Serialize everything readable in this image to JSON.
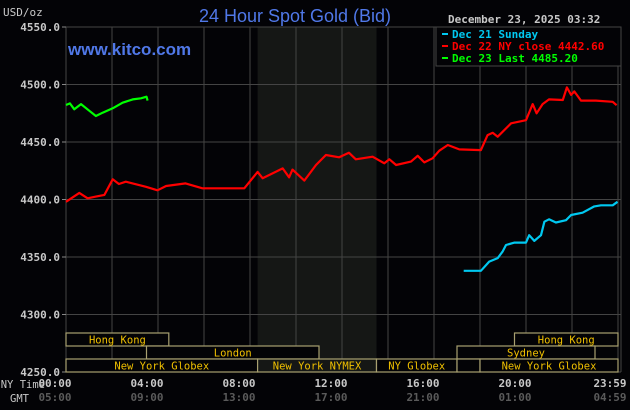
{
  "chart_data": {
    "type": "line",
    "title": "24 Hour Spot Gold (Bid)",
    "ylabel": "USD/oz",
    "watermark": "www.kitco.com",
    "timestamp": "December 23, 2025 03:32",
    "ylim": [
      4250,
      4550
    ],
    "yticks": [
      "4550.0",
      "4500.0",
      "4450.0",
      "4400.0",
      "4350.0",
      "4300.0",
      "4250.0"
    ],
    "ytick_values": [
      4550,
      4500,
      4450,
      4400,
      4350,
      4300,
      4250
    ],
    "xlim_hours": [
      0,
      24
    ],
    "grid": true,
    "x_row_labels": {
      "ny": "NY Time",
      "gmt": "GMT"
    },
    "xticks": [
      {
        "hour": 0,
        "ny": "00:00",
        "gmt": "05:00"
      },
      {
        "hour": 4,
        "ny": "04:00",
        "gmt": "09:00"
      },
      {
        "hour": 8,
        "ny": "08:00",
        "gmt": "13:00"
      },
      {
        "hour": 12,
        "ny": "12:00",
        "gmt": "17:00"
      },
      {
        "hour": 16,
        "ny": "16:00",
        "gmt": "21:00"
      },
      {
        "hour": 20,
        "ny": "20:00",
        "gmt": "01:00"
      },
      {
        "hour": 23.98,
        "ny": "23:59",
        "gmt": "04:59"
      }
    ],
    "shaded_range_hours": [
      8.33,
      13.5
    ],
    "legend_placement": "top-right",
    "series": [
      {
        "name": "Dec 21 Sunday",
        "color": "#00c8f0",
        "x": [
          17.29,
          18.04,
          18.4,
          18.77,
          18.98,
          19.13,
          19.5,
          20.0,
          20.14,
          20.36,
          20.65,
          20.8,
          21.0,
          21.3,
          21.74,
          21.96,
          22.46,
          22.97,
          23.26,
          23.77,
          23.98
        ],
        "y": [
          4338,
          4338,
          4346,
          4349,
          4354.6,
          4360.4,
          4362.5,
          4362.5,
          4369,
          4364,
          4369,
          4380.7,
          4382.8,
          4380,
          4382,
          4386.5,
          4388.5,
          4394,
          4395,
          4395,
          4398
        ]
      },
      {
        "name": "Dec 22 NY close 4442.60",
        "color": "#ff0000",
        "x": [
          0,
          0.58,
          0.94,
          1.3,
          1.67,
          2.03,
          2.3,
          2.6,
          3.48,
          3.98,
          4.35,
          5.2,
          5.93,
          6.96,
          7.75,
          8.33,
          8.55,
          9.42,
          9.7,
          9.85,
          10.36,
          10.87,
          11.3,
          11.88,
          12.3,
          12.6,
          13.33,
          13.84,
          14.06,
          14.35,
          15.0,
          15.29,
          15.58,
          15.94,
          16.23,
          16.6,
          17.1,
          18.04,
          18.33,
          18.55,
          18.77,
          19.35,
          20.0,
          20.29,
          20.46,
          20.72,
          21.0,
          21.6,
          21.78,
          21.96,
          22.1,
          22.39,
          23.04,
          23.77,
          23.94
        ],
        "y": [
          4398,
          4405.7,
          4401,
          4402.5,
          4404,
          4417.6,
          4413.5,
          4415.5,
          4411,
          4408,
          4411.7,
          4414,
          4409.7,
          4409.7,
          4409.7,
          4424,
          4418.5,
          4427,
          4419.3,
          4426,
          4416.4,
          4430,
          4438.7,
          4436.7,
          4440.7,
          4435,
          4437.2,
          4431.5,
          4435,
          4430,
          4433,
          4438,
          4432.3,
          4435.8,
          4442.4,
          4447.4,
          4443.6,
          4443,
          4456,
          4458,
          4454.6,
          4466.3,
          4469,
          4483,
          4475,
          4483,
          4487,
          4486.5,
          4497.5,
          4491,
          4494,
          4486,
          4486,
          4485,
          4482
        ]
      },
      {
        "name": "Dec 23 Last 4485.20",
        "color": "#00ff00",
        "x": [
          0,
          0.17,
          0.36,
          0.65,
          1.01,
          1.3,
          1.59,
          2.03,
          2.46,
          2.9,
          3.26,
          3.5,
          3.55
        ],
        "y": [
          4482.2,
          4483.6,
          4478.4,
          4483,
          4477.2,
          4472.6,
          4475.5,
          4479.3,
          4484.2,
          4487,
          4488,
          4489.4,
          4486
        ]
      }
    ],
    "sessions": [
      {
        "label": "Hong Kong",
        "row": 0,
        "start": 0,
        "end": 4.47
      },
      {
        "label": "Hong Kong",
        "row": 0,
        "start": 19.5,
        "end": 24
      },
      {
        "label": "London",
        "row": 1,
        "start": 3.5,
        "end": 11
      },
      {
        "label": "Sydney",
        "row": 1,
        "start": 17,
        "end": 23
      },
      {
        "label": "New York Globex",
        "row": 2,
        "start": 0,
        "end": 8.33
      },
      {
        "label": "New York NYMEX",
        "row": 2,
        "start": 8.33,
        "end": 13.5
      },
      {
        "label": "NY Globex",
        "row": 2,
        "start": 13.5,
        "end": 17
      },
      {
        "label": "",
        "row": 2,
        "start": 17,
        "end": 18
      },
      {
        "label": "New York Globex",
        "row": 2,
        "start": 18,
        "end": 24
      }
    ]
  }
}
